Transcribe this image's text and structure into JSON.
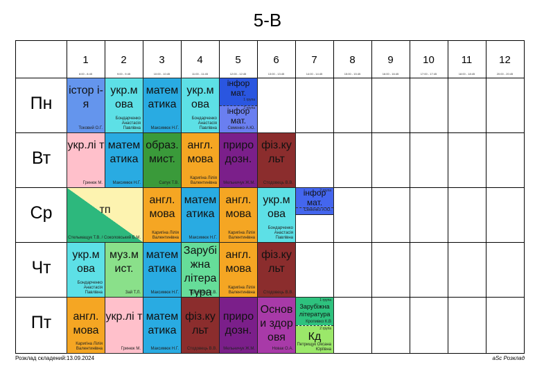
{
  "title": "5-В",
  "footer": {
    "left": "Розклад складений:13.09.2024",
    "right": "aSc Розклад"
  },
  "periods": [
    {
      "num": "1",
      "time": "8:00 - 8:45"
    },
    {
      "num": "2",
      "time": "9:00 - 9:45"
    },
    {
      "num": "3",
      "time": "10:00 - 10:45"
    },
    {
      "num": "4",
      "time": "11:00 - 11:45"
    },
    {
      "num": "5",
      "time": "12:00 - 12:45"
    },
    {
      "num": "6",
      "time": "13:00 - 13:45"
    },
    {
      "num": "7",
      "time": "14:00 - 14:45"
    },
    {
      "num": "8",
      "time": "15:00 - 15:45"
    },
    {
      "num": "9",
      "time": "16:00 - 16:45"
    },
    {
      "num": "10",
      "time": "17:00 - 17:45"
    },
    {
      "num": "11",
      "time": "18:00 - 18:45"
    },
    {
      "num": "12",
      "time": "20:00 - 20:45"
    }
  ],
  "days": [
    "Пн",
    "Вт",
    "Ср",
    "Чт",
    "Пт"
  ],
  "colors": {
    "history": "#6495ed",
    "ukr_lang": "#5de0e6",
    "math": "#29abe2",
    "informatics": "#4466ee",
    "ukr_lit": "#ffc0cb",
    "art": "#3a9a3a",
    "english": "#f5a623",
    "nature": "#7b1f8a",
    "pe": "#8b2d2d",
    "tp_green": "#2db87d",
    "tp_yellow": "#fdf3b0",
    "music": "#8ae08a",
    "world_lit": "#66dd99",
    "health": "#a83aa8",
    "world_lit_group": "#2ec27e",
    "kd_group": "#9be86a"
  },
  "lessons": {
    "mon": [
      {
        "subject": "істор­ і­ я",
        "teacher": "Токовий О.Г."
      },
      {
        "subject": "укр.м ова",
        "teacher": "Бондарченко Анастасія Павлівна"
      },
      {
        "subject": "матем атика",
        "teacher": "Максимюк Н.Г."
      },
      {
        "subject": "укр.м ова",
        "teacher": "Бондарченко Анастасія Павлівна"
      },
      {
        "top": "інфор мат.",
        "top_group": "1 група",
        "bottom": "інфор мат.",
        "bottom_group": "2 група",
        "teacher": "Семенко А.Ю."
      }
    ],
    "tue": [
      {
        "subject": "укр.лі т",
        "teacher": "Гринюк М."
      },
      {
        "subject": "матем атика",
        "teacher": "Максимюк Н.Г."
      },
      {
        "subject": "образ. мист.",
        "teacher": "Сапук Т.В."
      },
      {
        "subject": "англ. мова",
        "teacher": "Каригіна Лілія Валентинівна"
      },
      {
        "subject": "приро дозн.",
        "teacher": "Мельничук Ж.М."
      },
      {
        "subject": "фіз.ку льт",
        "teacher": "Стодовець В.В."
      }
    ],
    "wed": [
      {
        "subject": "тп",
        "teacher": "Стельмащук Т.В. / Соколовський Б.М."
      },
      {
        "subject": "англ. мова",
        "teacher": "Каригіна Лілія Валентинівна"
      },
      {
        "subject": "матем атика",
        "teacher": "Максимюк Н.Г."
      },
      {
        "subject": "англ. мова",
        "teacher": "Каригіна Лілія Валентинівна"
      },
      {
        "subject": "укр.м ова",
        "teacher": "Бондарченко Анастасія Павлівна"
      },
      {
        "subject": "інфор мат.",
        "group": "2 група",
        "teacher": "Семенко А.Ю."
      }
    ],
    "thu": [
      {
        "subject": "укр.м ова",
        "teacher": "Бондарченко Анастасія Павлівна"
      },
      {
        "subject": "муз.м ист.",
        "teacher": "Зай Т.Л."
      },
      {
        "subject": "матем атика",
        "teacher": "Максимюк Н.Г."
      },
      {
        "subject": "Зарубі жна літера тура",
        "teacher": "Кропивко К.В."
      },
      {
        "subject": "англ. мова",
        "teacher": "Каригіна Лілія Валентинівна"
      },
      {
        "subject": "фіз.ку льт",
        "teacher": "Стодовець В.В."
      }
    ],
    "fri": [
      {
        "subject": "англ. мова",
        "teacher": "Каригіна Лілія Валентинівна"
      },
      {
        "subject": "укр.лі т",
        "teacher": "Гринюк М."
      },
      {
        "subject": "матем атика",
        "teacher": "Максимюк Н.Г."
      },
      {
        "subject": "фіз.ку льт",
        "teacher": "Стодовець В.В."
      },
      {
        "subject": "приро дозн.",
        "teacher": "Мельничук Ж.М."
      },
      {
        "subject": "Основ и здор овя",
        "teacher": "Новак О.А."
      },
      {
        "top": "Зарубіжна література",
        "top_group": "1 група",
        "top_teacher": "Кропивко К.В",
        "bottom": "Кд",
        "bottom_group": "2 група",
        "teacher": "Петрищук Оксана Юріївна"
      }
    ]
  }
}
